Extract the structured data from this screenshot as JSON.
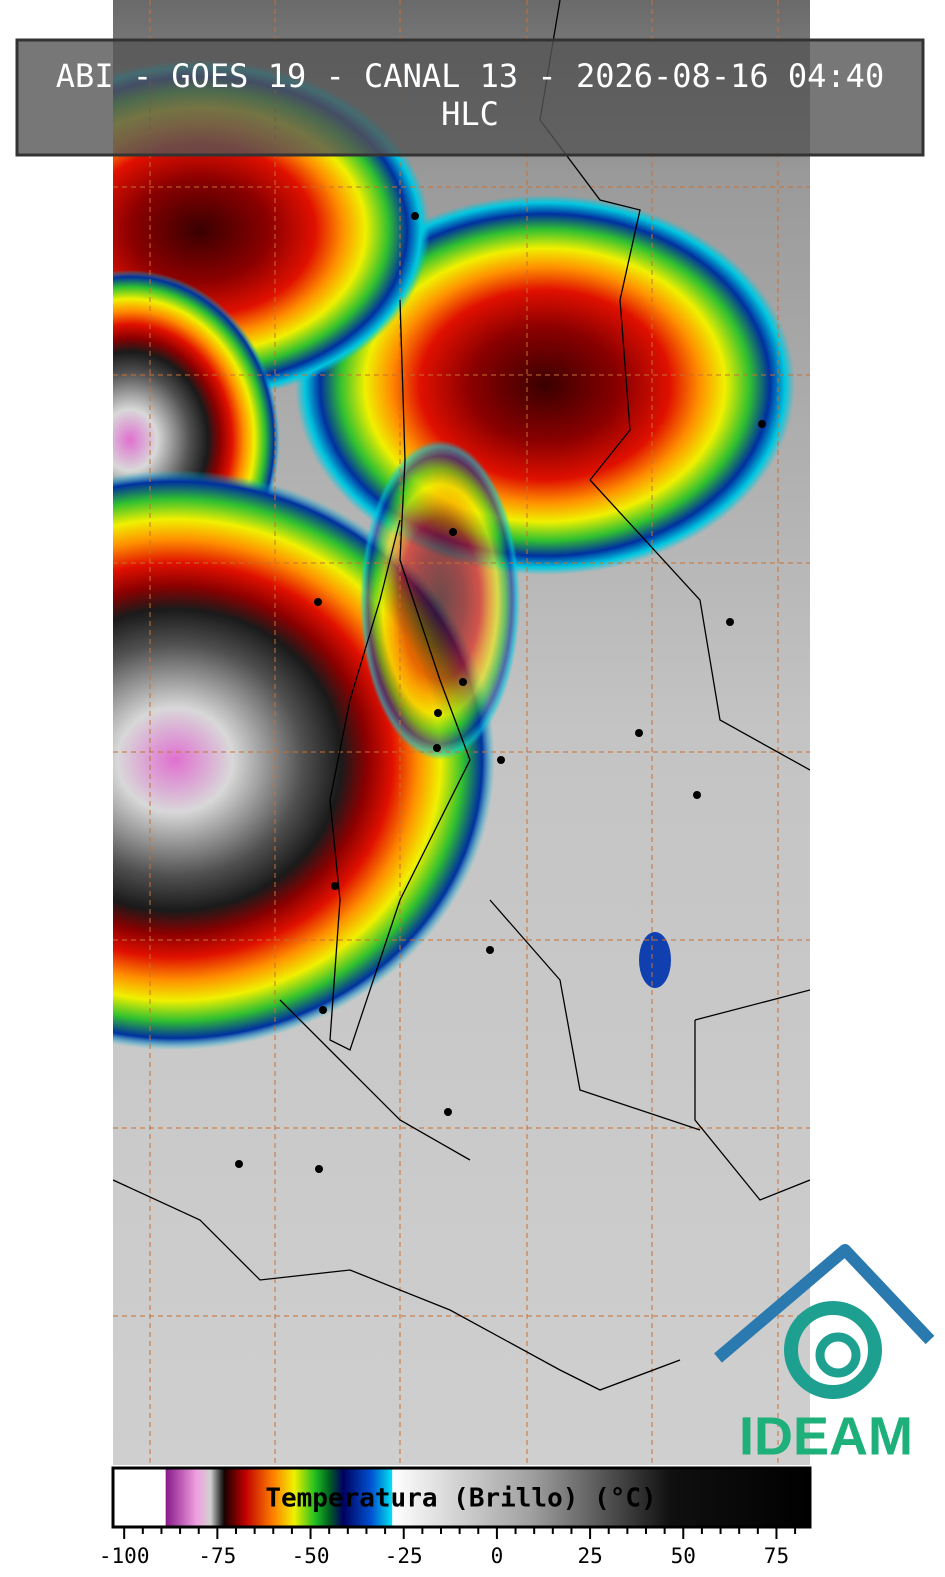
{
  "header": {
    "title": "ABI - GOES 19 - CANAL 13 - 2026-08-16 04:40",
    "subtitle": "HLC"
  },
  "colorbar": {
    "label": "Temperatura (Brillo) (°C)",
    "xlim": [
      -103,
      84
    ],
    "ticks": [
      -100,
      -75,
      -50,
      -25,
      0,
      25,
      50,
      75
    ],
    "minor_ticks": [
      -95,
      -90,
      -85,
      -80,
      -70,
      -65,
      -60,
      -55,
      -45,
      -40,
      -35,
      -30,
      -20,
      -15,
      -10,
      -5,
      5,
      10,
      15,
      20,
      30,
      35,
      40,
      45,
      55,
      60,
      65,
      70,
      80
    ]
  },
  "logo": {
    "text": "IDEAM"
  }
}
